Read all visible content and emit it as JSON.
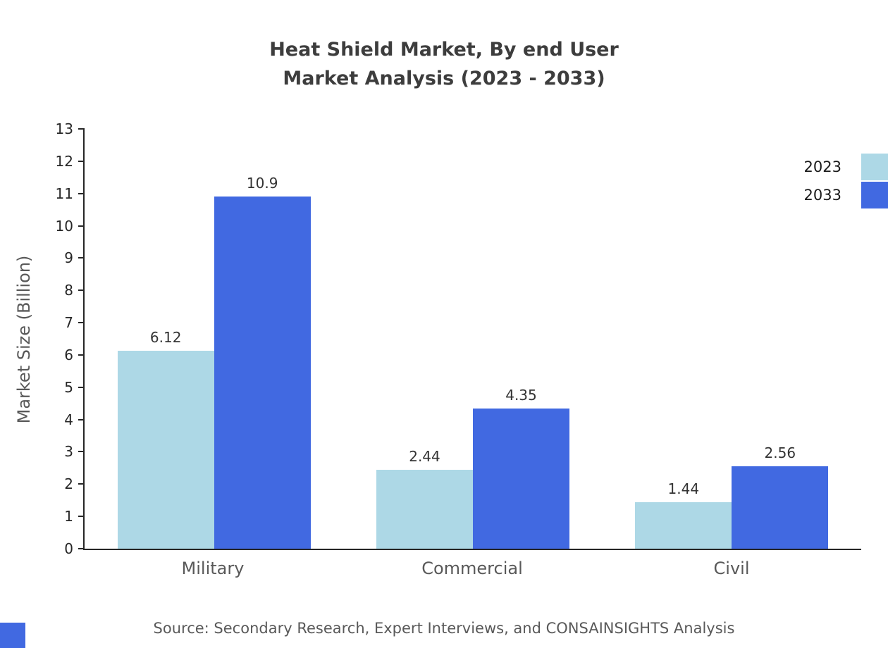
{
  "title": {
    "line1": "Heat Shield Market, By end User",
    "line2": "Market Analysis (2023 - 2033)"
  },
  "source": "Source: Secondary Research, Expert Interviews, and CONSAINSIGHTS Analysis",
  "colors": {
    "series_2023": "#ADD8E6",
    "series_2033": "#4169E1",
    "axis": "#262626",
    "label_gray": "#595959"
  },
  "chart_data": {
    "type": "bar",
    "title": "Heat Shield Market, By end User Market Analysis (2023 - 2033)",
    "categories": [
      "Military",
      "Commercial",
      "Civil"
    ],
    "series": [
      {
        "name": "2023",
        "color": "#ADD8E6",
        "values": [
          6.12,
          2.44,
          1.44
        ]
      },
      {
        "name": "2033",
        "color": "#4169E1",
        "values": [
          10.9,
          4.35,
          2.56
        ]
      }
    ],
    "xlabel": "",
    "ylabel": "Market Size (Billion)",
    "ylim": [
      0,
      13
    ],
    "ytick_step": 1,
    "grid": false,
    "legend_position": "top-right"
  }
}
